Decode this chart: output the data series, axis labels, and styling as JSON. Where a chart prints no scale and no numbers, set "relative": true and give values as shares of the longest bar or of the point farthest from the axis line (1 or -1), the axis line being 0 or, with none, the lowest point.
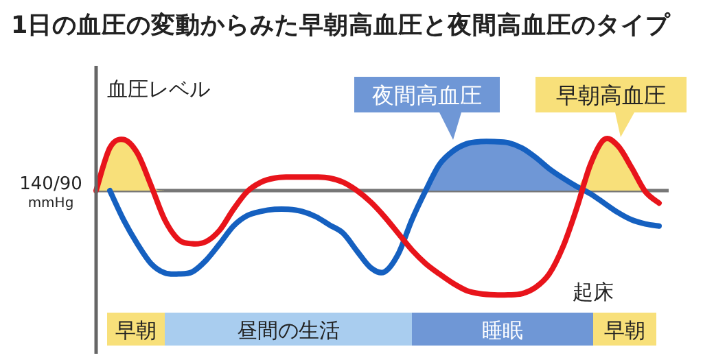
{
  "chart_data": {
    "type": "line",
    "title": "1日の血圧の変動からみた早朝高血圧と夜間高血圧のタイプ",
    "ylabel": "血圧レベル",
    "relative": true,
    "categories": [
      null,
      null,
      null,
      null,
      null,
      null,
      null,
      null,
      null,
      null,
      null,
      null,
      null,
      null,
      null,
      null,
      null,
      null,
      null,
      null,
      null,
      null,
      null,
      null,
      null,
      null,
      null,
      null,
      null,
      null,
      null,
      null,
      null,
      null,
      null,
      null,
      null,
      null,
      null,
      null,
      null,
      null
    ],
    "series": [
      {
        "type": "area",
        "color": "#f8e07a",
        "values": [
          0,
          0.41,
          0.49,
          0.36,
          0.05,
          0,
          null,
          null,
          null,
          null,
          null,
          null,
          null,
          null,
          null,
          null,
          null,
          null,
          null,
          null,
          null,
          null,
          null,
          null,
          null,
          null,
          null,
          null,
          null,
          null,
          null,
          null,
          null,
          null,
          null,
          null,
          null,
          null,
          null,
          null,
          null,
          null
        ]
      },
      {
        "type": "area",
        "color": "#6f97d6",
        "values": [
          null,
          null,
          null,
          null,
          null,
          null,
          null,
          null,
          null,
          null,
          null,
          null,
          null,
          null,
          null,
          null,
          null,
          null,
          null,
          null,
          null,
          null,
          null,
          null,
          0,
          0.25,
          0.38,
          0.45,
          0.47,
          0.47,
          0.46,
          0.41,
          0.32,
          0.21,
          0.12,
          0.04,
          0,
          null,
          null,
          null,
          null,
          null
        ]
      },
      {
        "type": "area",
        "color": "#f8e07a",
        "values": [
          null,
          null,
          null,
          null,
          null,
          null,
          null,
          null,
          null,
          null,
          null,
          null,
          null,
          null,
          null,
          null,
          null,
          null,
          null,
          null,
          null,
          null,
          null,
          null,
          null,
          null,
          null,
          null,
          null,
          null,
          null,
          null,
          null,
          null,
          null,
          0,
          0.25,
          0.49,
          0.43,
          0.22,
          0,
          null
        ]
      },
      {
        "color": "#1560c0",
        "values": [
          null,
          0,
          -0.28,
          -0.51,
          -0.7,
          -0.79,
          -0.8,
          -0.78,
          -0.67,
          -0.51,
          -0.34,
          -0.24,
          -0.2,
          -0.18,
          -0.18,
          -0.2,
          -0.25,
          -0.33,
          -0.41,
          -0.58,
          -0.74,
          -0.78,
          -0.61,
          -0.28,
          0,
          0.25,
          0.38,
          0.45,
          0.47,
          0.47,
          0.46,
          0.41,
          0.32,
          0.21,
          0.12,
          0.04,
          -0.03,
          -0.12,
          -0.21,
          -0.28,
          -0.32,
          -0.34
        ]
      },
      {
        "color": "#e8141b",
        "values": [
          0,
          0.41,
          0.49,
          0.36,
          0.05,
          -0.28,
          -0.47,
          -0.51,
          -0.49,
          -0.38,
          -0.18,
          -0.01,
          0.08,
          0.12,
          0.13,
          0.13,
          0.13,
          0.12,
          0.08,
          0,
          -0.11,
          -0.25,
          -0.41,
          -0.57,
          -0.7,
          -0.8,
          -0.89,
          -0.96,
          -0.99,
          -1,
          -1,
          -0.99,
          -0.93,
          -0.8,
          -0.54,
          -0.17,
          0.25,
          0.49,
          0.43,
          0.22,
          -0.01,
          -0.12
        ]
      }
    ],
    "ref_lines": [
      {
        "axis": "y",
        "value": 0,
        "label": "140/90 mmHg",
        "color": "#777777"
      }
    ],
    "annotations": [
      "夜間高血圧",
      "早朝高血圧",
      "起床",
      "早朝",
      "昼間の生活",
      "睡眠",
      "早朝"
    ]
  }
}
